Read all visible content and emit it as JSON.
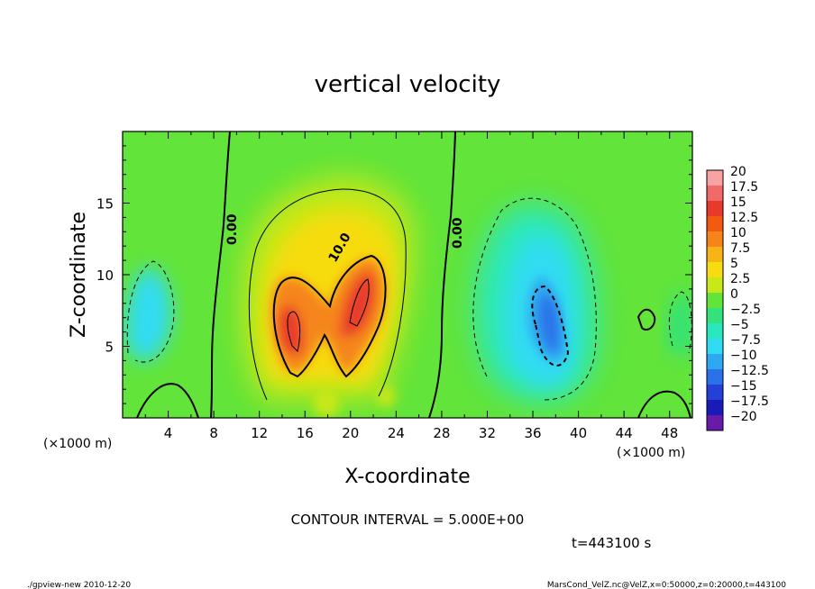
{
  "chart_data": {
    "type": "heatmap",
    "title": "vertical velocity",
    "xlabel": "X-coordinate",
    "ylabel": "Z-coordinate",
    "x_unit": "(×1000 m)",
    "z_unit": "(×1000 m)",
    "xlim": [
      0,
      50
    ],
    "ylim": [
      0,
      20
    ],
    "x_ticks": [
      4,
      8,
      12,
      16,
      20,
      24,
      28,
      32,
      36,
      40,
      44,
      48
    ],
    "y_ticks": [
      5,
      10,
      15
    ],
    "colorbar": {
      "labels": [
        "20",
        "17.5",
        "15",
        "12.5",
        "10",
        "7.5",
        "5",
        "2.5",
        "0",
        "−2.5",
        "−5",
        "−7.5",
        "−10",
        "−12.5",
        "−15",
        "−17.5",
        "−20"
      ],
      "colors": [
        "#f7a3a3",
        "#f06a6a",
        "#e83a2a",
        "#f25a10",
        "#f5851a",
        "#f7b416",
        "#f6dc10",
        "#c9e818",
        "#62e43a",
        "#33e27a",
        "#29e8c0",
        "#30dcf2",
        "#2ea8f0",
        "#2a72e8",
        "#2440d8",
        "#1a1ab8",
        "#6a1aa8"
      ]
    },
    "contour_labels": [
      "0.00",
      "10.0",
      "0.00"
    ],
    "contour_interval_text": "CONTOUR INTERVAL = 5.000E+00",
    "time_text": "t=443100 s"
  },
  "footer": {
    "left": "./gpview-new  2010-12-20",
    "right": "MarsCond_VelZ.nc@VelZ,x=0:50000,z=0:20000,t=443100"
  }
}
